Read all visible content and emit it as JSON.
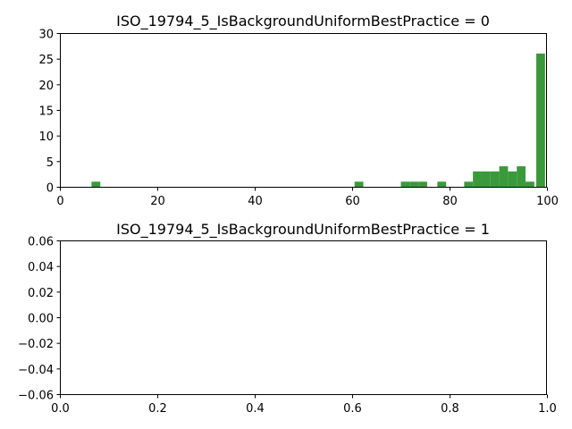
{
  "chart_data": [
    {
      "type": "bar",
      "title": "ISO_19794_5_IsBackgroundUniformBestPractice = 0",
      "xlim": [
        0,
        100
      ],
      "ylim": [
        0,
        30
      ],
      "xticks": [
        "0",
        "20",
        "40",
        "60",
        "80",
        "100"
      ],
      "yticks": [
        "0",
        "5",
        "10",
        "15",
        "20",
        "25",
        "30"
      ],
      "bin_width": 1.8,
      "bars": [
        {
          "x": 6.5,
          "value": 1
        },
        {
          "x": 60.5,
          "value": 1
        },
        {
          "x": 70.0,
          "value": 1
        },
        {
          "x": 71.8,
          "value": 1
        },
        {
          "x": 73.6,
          "value": 1
        },
        {
          "x": 77.5,
          "value": 1
        },
        {
          "x": 83.0,
          "value": 1
        },
        {
          "x": 84.8,
          "value": 3
        },
        {
          "x": 86.6,
          "value": 3
        },
        {
          "x": 88.4,
          "value": 3
        },
        {
          "x": 90.2,
          "value": 4
        },
        {
          "x": 92.0,
          "value": 3
        },
        {
          "x": 93.8,
          "value": 4
        },
        {
          "x": 95.6,
          "value": 1
        },
        {
          "x": 97.8,
          "value": 26
        }
      ],
      "color": "#3a9a3a"
    },
    {
      "type": "bar",
      "title": "ISO_19794_5_IsBackgroundUniformBestPractice = 1",
      "xlim": [
        0.0,
        1.0
      ],
      "ylim": [
        -0.06,
        0.06
      ],
      "xticks": [
        "0.0",
        "0.2",
        "0.4",
        "0.6",
        "0.8",
        "1.0"
      ],
      "yticks": [
        "−0.06",
        "−0.04",
        "−0.02",
        "0.00",
        "0.02",
        "0.04",
        "0.06"
      ],
      "bars": []
    }
  ]
}
